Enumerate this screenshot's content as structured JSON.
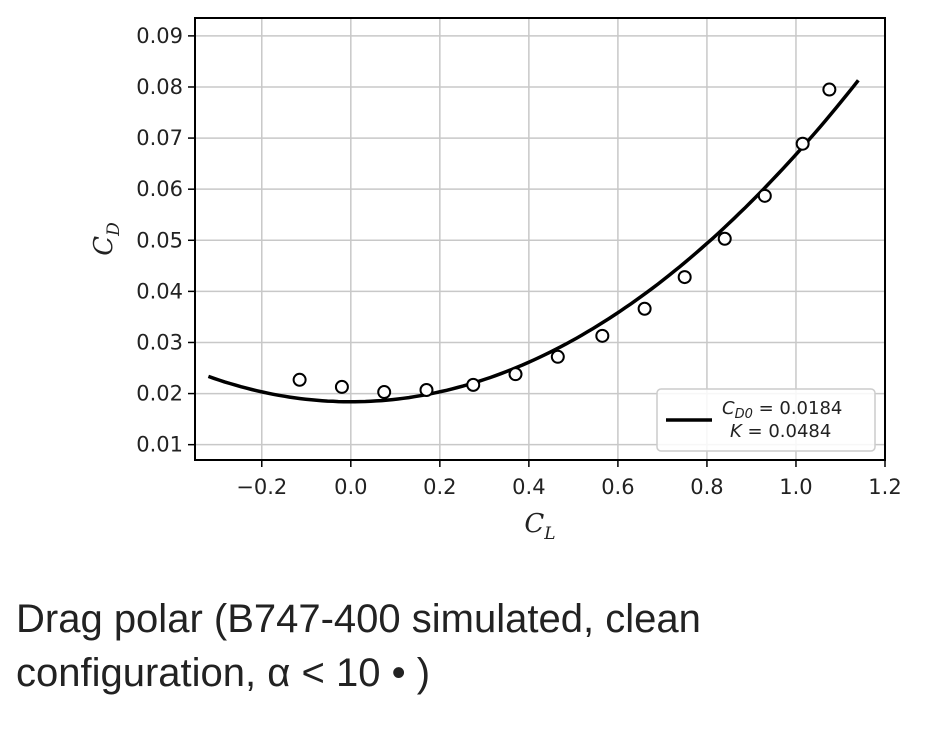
{
  "caption": "Drag polar (B747-400 simulated, clean configuration, α < 10 • )",
  "chart_data": {
    "type": "scatter",
    "xlabel": {
      "main": "C",
      "sub": "L"
    },
    "ylabel": {
      "main": "C",
      "sub": "D"
    },
    "xlim": [
      -0.35,
      1.2
    ],
    "ylim": [
      0.007,
      0.0935
    ],
    "x_ticks": [
      -0.2,
      0.0,
      0.2,
      0.4,
      0.6,
      0.8,
      1.0,
      1.2
    ],
    "x_tick_labels": [
      "−0.2",
      "0.0",
      "0.2",
      "0.4",
      "0.6",
      "0.8",
      "1.0",
      "1.2"
    ],
    "y_ticks": [
      0.01,
      0.02,
      0.03,
      0.04,
      0.05,
      0.06,
      0.07,
      0.08,
      0.09
    ],
    "y_tick_labels": [
      "0.01",
      "0.02",
      "0.03",
      "0.04",
      "0.05",
      "0.06",
      "0.07",
      "0.08",
      "0.09"
    ],
    "grid": true,
    "legend_position": "bottom-right",
    "series": [
      {
        "kind": "points",
        "marker": "open-circle",
        "x": [
          -0.115,
          -0.02,
          0.075,
          0.17,
          0.275,
          0.37,
          0.465,
          0.565,
          0.66,
          0.75,
          0.84,
          0.93,
          1.015,
          1.075
        ],
        "y": [
          0.0227,
          0.0213,
          0.0203,
          0.0207,
          0.0217,
          0.0238,
          0.0272,
          0.0313,
          0.0366,
          0.0428,
          0.0503,
          0.0587,
          0.0689,
          0.0795
        ]
      },
      {
        "kind": "curve",
        "name_line1": "C",
        "name_line1_sub": "D0",
        "name_line1_value": " = 0.0184",
        "name_line2": "K",
        "name_line2_value": " = 0.0484",
        "cd0": 0.0184,
        "k": 0.0484,
        "x_range": [
          -0.32,
          1.14
        ],
        "color": "#000000"
      }
    ]
  }
}
